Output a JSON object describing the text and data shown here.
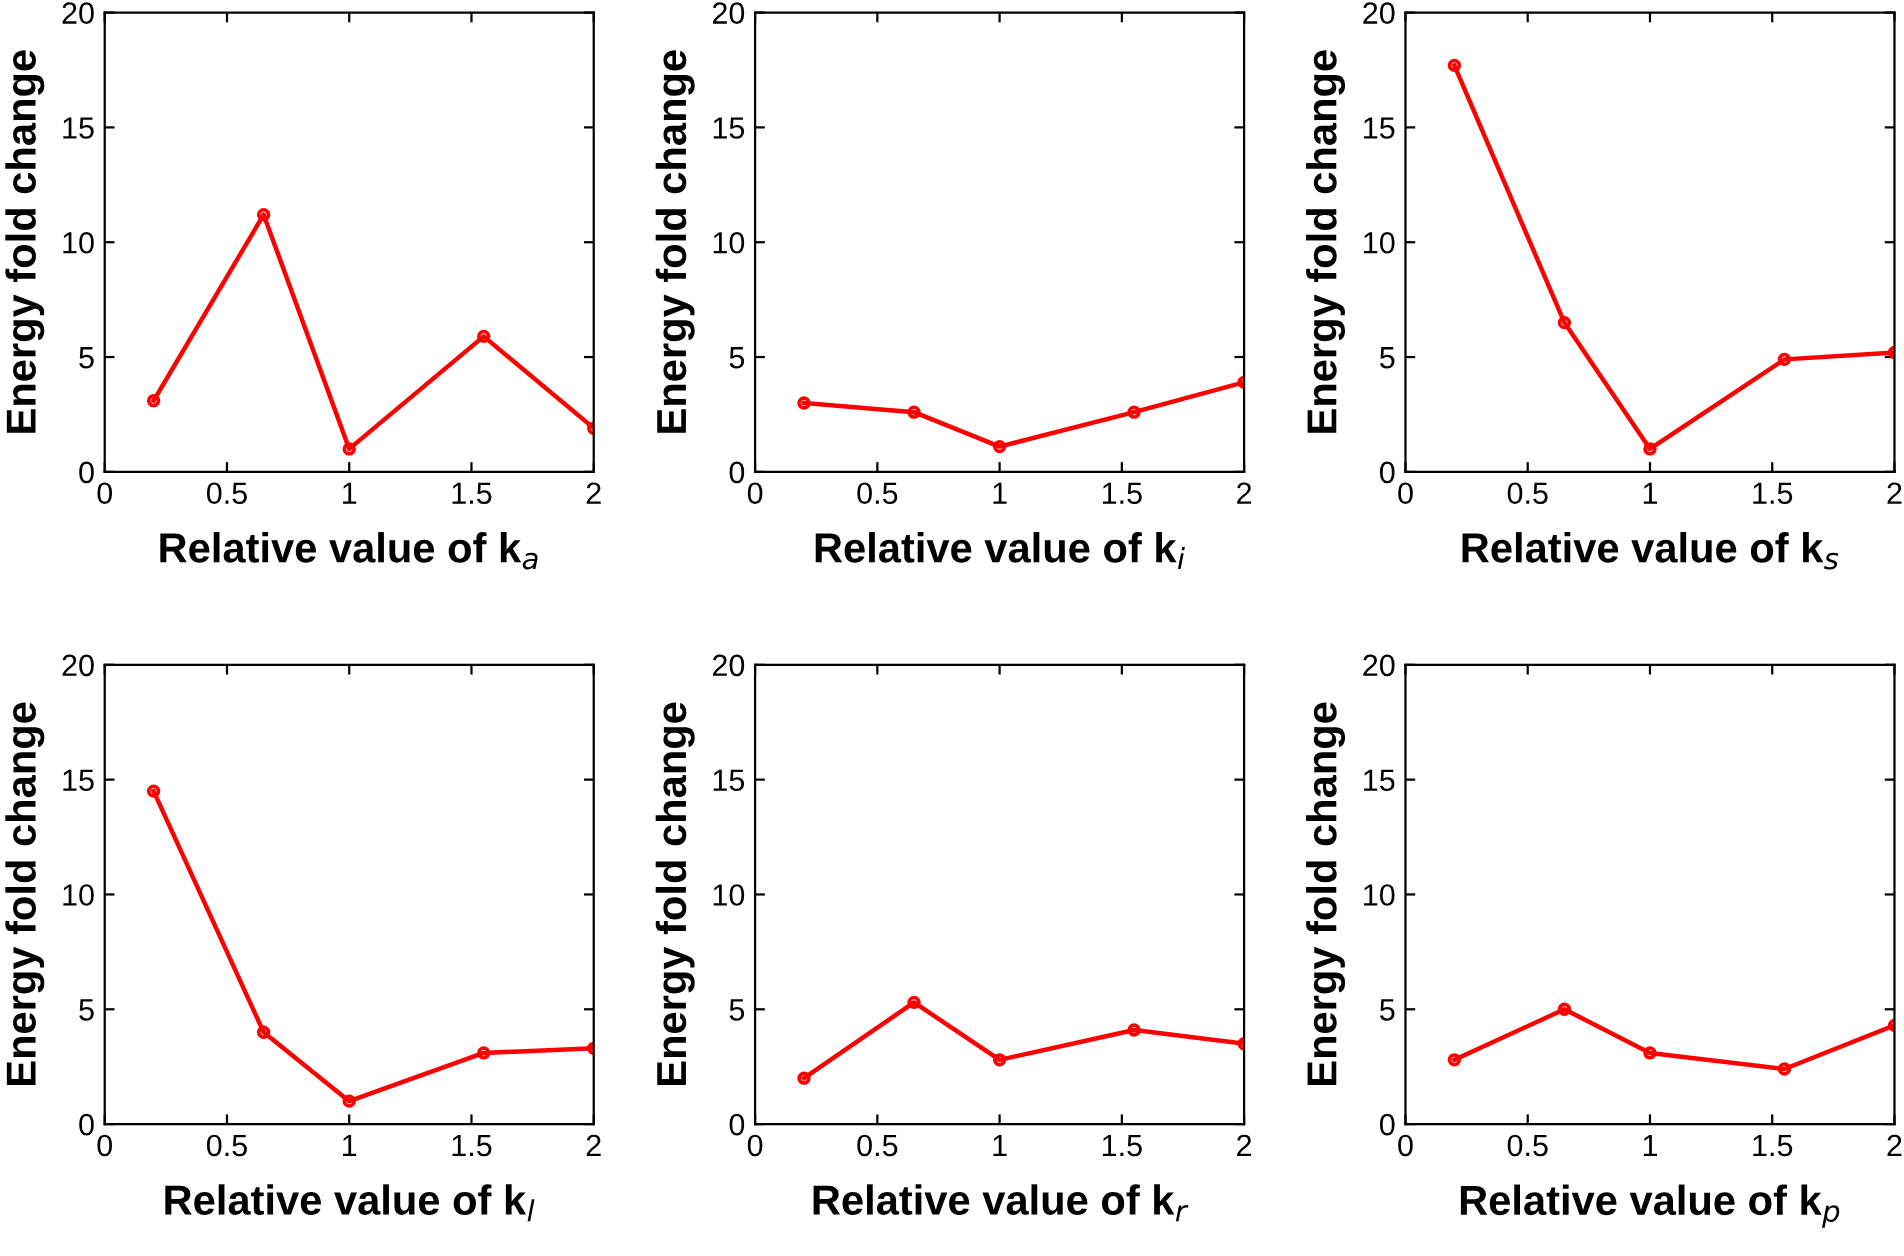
{
  "chart_data": [
    {
      "type": "line",
      "xlabel": "Relative value of k$_{a}$",
      "ylabel": "Energy fold change",
      "x": [
        0.2,
        0.65,
        1,
        1.55,
        2
      ],
      "series": [
        {
          "color": "#ff0000",
          "values": [
            3.1,
            11.2,
            1.0,
            5.9,
            1.9
          ]
        }
      ],
      "xlim": [
        0,
        2
      ],
      "xticks": [
        0,
        0.5,
        1,
        1.5,
        2
      ],
      "ylim": [
        0,
        20
      ],
      "yticks": [
        0,
        5,
        10,
        15,
        20
      ],
      "marker": "circle",
      "line_style": "solid",
      "grid": false,
      "legend": false
    },
    {
      "type": "line",
      "xlabel": "Relative value of k$_{i}$",
      "ylabel": "Energy fold change",
      "x": [
        0.2,
        0.65,
        1,
        1.55,
        2
      ],
      "series": [
        {
          "color": "#ff0000",
          "values": [
            3.0,
            2.6,
            1.1,
            2.6,
            3.9
          ]
        }
      ],
      "xlim": [
        0,
        2
      ],
      "xticks": [
        0,
        0.5,
        1,
        1.5,
        2
      ],
      "ylim": [
        0,
        20
      ],
      "yticks": [
        0,
        5,
        10,
        15,
        20
      ],
      "marker": "circle",
      "line_style": "solid",
      "grid": false,
      "legend": false
    },
    {
      "type": "line",
      "xlabel": "Relative value of k$_{s}$",
      "ylabel": "Energy fold change",
      "x": [
        0.2,
        0.65,
        1,
        1.55,
        2
      ],
      "series": [
        {
          "color": "#ff0000",
          "values": [
            17.7,
            6.5,
            1.0,
            4.9,
            5.2
          ]
        }
      ],
      "xlim": [
        0,
        2
      ],
      "xticks": [
        0,
        0.5,
        1,
        1.5,
        2
      ],
      "ylim": [
        0,
        20
      ],
      "yticks": [
        0,
        5,
        10,
        15,
        20
      ],
      "marker": "circle",
      "line_style": "solid",
      "grid": false,
      "legend": false
    },
    {
      "type": "line",
      "xlabel": "Relative value of k$_{l}$",
      "ylabel": "Energy fold change",
      "x": [
        0.2,
        0.65,
        1,
        1.55,
        2
      ],
      "series": [
        {
          "color": "#ff0000",
          "values": [
            14.5,
            4.0,
            1.0,
            3.1,
            3.3
          ]
        }
      ],
      "xlim": [
        0,
        2
      ],
      "xticks": [
        0,
        0.5,
        1,
        1.5,
        2
      ],
      "ylim": [
        0,
        20
      ],
      "yticks": [
        0,
        5,
        10,
        15,
        20
      ],
      "marker": "circle",
      "line_style": "solid",
      "grid": false,
      "legend": false
    },
    {
      "type": "line",
      "xlabel": "Relative value of k$_{r}$",
      "ylabel": "Energy fold change",
      "x": [
        0.2,
        0.65,
        1,
        1.55,
        2
      ],
      "series": [
        {
          "color": "#ff0000",
          "values": [
            2.0,
            5.3,
            2.8,
            4.1,
            3.5
          ]
        }
      ],
      "xlim": [
        0,
        2
      ],
      "xticks": [
        0,
        0.5,
        1,
        1.5,
        2
      ],
      "ylim": [
        0,
        20
      ],
      "yticks": [
        0,
        5,
        10,
        15,
        20
      ],
      "marker": "circle",
      "line_style": "solid",
      "grid": false,
      "legend": false
    },
    {
      "type": "line",
      "xlabel": "Relative value of k$_{p}$",
      "ylabel": "Energy fold change",
      "x": [
        0.2,
        0.65,
        1,
        1.55,
        2
      ],
      "series": [
        {
          "color": "#ff0000",
          "values": [
            2.8,
            5.0,
            3.1,
            2.4,
            4.3
          ]
        }
      ],
      "xlim": [
        0,
        2
      ],
      "xticks": [
        0,
        0.5,
        1,
        1.5,
        2
      ],
      "ylim": [
        0,
        20
      ],
      "yticks": [
        0,
        5,
        10,
        15,
        20
      ],
      "marker": "circle",
      "line_style": "solid",
      "grid": false,
      "legend": false
    }
  ]
}
